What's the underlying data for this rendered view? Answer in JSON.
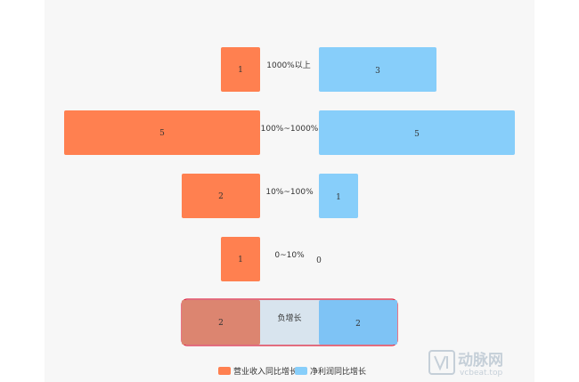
{
  "chart_data": {
    "type": "bar",
    "orientation": "horizontal-butterfly",
    "categories": [
      "1000%以上",
      "100%~1000%",
      "10%~100%",
      "0~10%",
      "负增长"
    ],
    "series": [
      {
        "name": "营业收入同比增长",
        "values": [
          1,
          5,
          2,
          1,
          2
        ],
        "color": "#FF8050",
        "side": "left"
      },
      {
        "name": "净利润同比增长",
        "values": [
          3,
          5,
          1,
          0,
          2
        ],
        "color": "#87CEFA",
        "side": "right"
      }
    ],
    "highlight": {
      "category": "负增长",
      "border_color": "#E0203A",
      "fill": "#D8E4EE"
    },
    "legend": {
      "position": "bottom-center"
    },
    "grid": false
  },
  "watermark": {
    "text_cn": "动脉网",
    "text_en": "vcbeat.top"
  }
}
